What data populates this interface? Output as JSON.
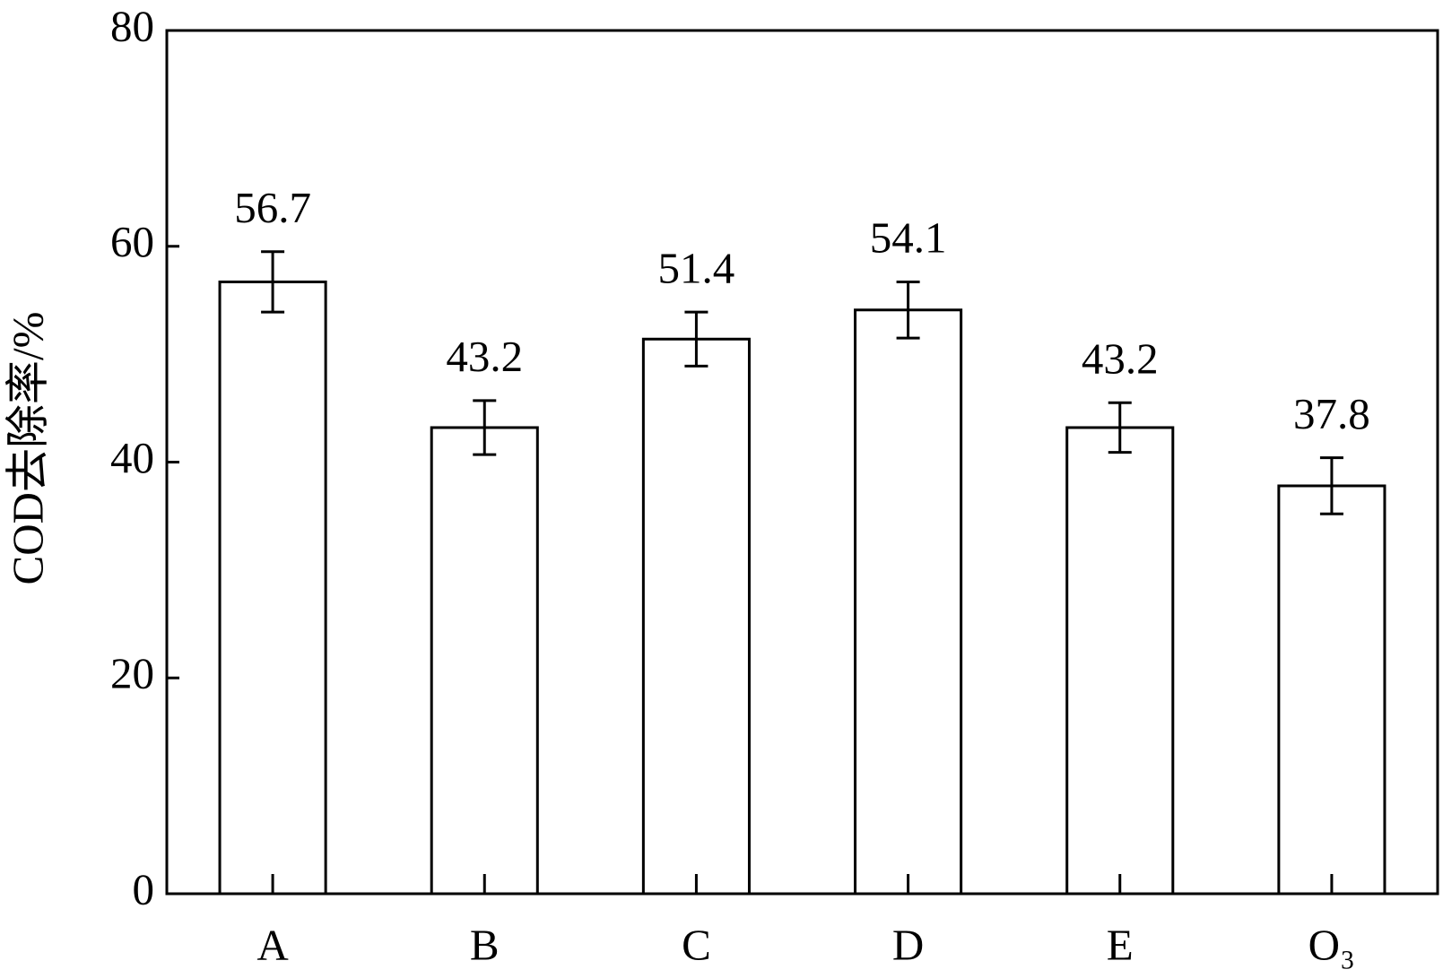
{
  "chart_data": {
    "type": "bar",
    "ylabel": "COD去除率/%",
    "categories": [
      "A",
      "B",
      "C",
      "D",
      "E",
      "O₃"
    ],
    "values": [
      56.7,
      43.2,
      51.4,
      54.1,
      43.2,
      37.8
    ],
    "errors": [
      2.8,
      2.5,
      2.5,
      2.6,
      2.3,
      2.6
    ],
    "color": "#ffffff",
    "edge_color": "#000000",
    "ylim": [
      0,
      80
    ],
    "yticks": [
      0,
      20,
      40,
      60,
      80
    ],
    "grid": false
  }
}
